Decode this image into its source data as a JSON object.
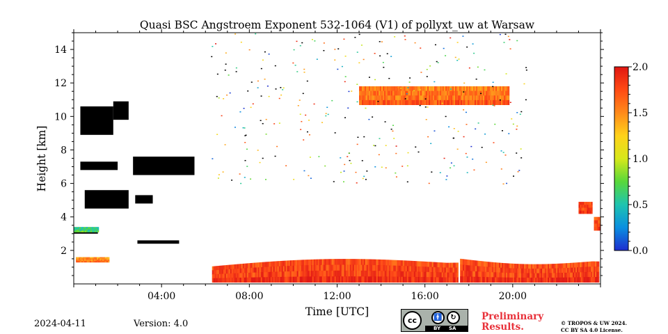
{
  "chart_data": {
    "type": "heatmap",
    "title": "Quasi BSC Angstroem Exponent 532-1064 (V1) of pollyxt_uw at Warsaw",
    "xlabel": "Time [UTC]",
    "ylabel": "Height [km]",
    "x_unit": "hours UTC",
    "xlim": [
      0,
      24
    ],
    "ylim": [
      0,
      15
    ],
    "x_ticks": [
      {
        "value": 4,
        "label": "04:00"
      },
      {
        "value": 8,
        "label": "08:00"
      },
      {
        "value": 12,
        "label": "12:00"
      },
      {
        "value": 16,
        "label": "16:00"
      },
      {
        "value": 20,
        "label": "20:00"
      }
    ],
    "y_ticks": [
      {
        "value": 2,
        "label": "2"
      },
      {
        "value": 4,
        "label": "4"
      },
      {
        "value": 6,
        "label": "6"
      },
      {
        "value": 8,
        "label": "8"
      },
      {
        "value": 10,
        "label": "10"
      },
      {
        "value": 12,
        "label": "12"
      },
      {
        "value": 14,
        "label": "14"
      }
    ],
    "colorbar": {
      "range": [
        0.0,
        2.0
      ],
      "ticks": [
        {
          "value": 0.0,
          "label": "0.0"
        },
        {
          "value": 0.5,
          "label": "0.5"
        },
        {
          "value": 1.0,
          "label": "1.0"
        },
        {
          "value": 1.5,
          "label": "1.5"
        },
        {
          "value": 2.0,
          "label": "2.0"
        }
      ],
      "colormap": [
        "#1e2dcf",
        "#0a8fe0",
        "#1ec4b0",
        "#58d83a",
        "#d7e81a",
        "#ffd21a",
        "#ff8a1a",
        "#ff4a14",
        "#e01612"
      ]
    },
    "regions": [
      {
        "t0": 6.3,
        "t1": 17.5,
        "h0": 0.1,
        "h1": 1.05,
        "h1_end": 1.6,
        "value": 1.8
      },
      {
        "t0": 17.6,
        "t1": 23.9,
        "h0": 0.1,
        "h1": 1.5,
        "h1_end": 1.1,
        "value": 1.8
      },
      {
        "t0": 13.0,
        "t1": 19.8,
        "h0": 10.7,
        "h1": 11.8,
        "value": 1.6
      },
      {
        "t0": 23.0,
        "t1": 23.6,
        "h0": 4.2,
        "h1": 4.9,
        "value": 1.8
      },
      {
        "t0": 23.7,
        "t1": 24.0,
        "h0": 3.2,
        "h1": 4.0,
        "value": 1.7
      },
      {
        "t0": 0.1,
        "t1": 1.6,
        "h0": 1.3,
        "h1": 1.6,
        "value": 1.5
      },
      {
        "t0": 0.0,
        "t1": 1.1,
        "h0": 3.1,
        "h1": 3.4,
        "value": 0.6
      }
    ],
    "masked_regions": [
      {
        "t0": 0.3,
        "t1": 1.8,
        "h0": 8.9,
        "h1": 10.6
      },
      {
        "t0": 1.8,
        "t1": 2.5,
        "h0": 9.8,
        "h1": 10.9
      },
      {
        "t0": 0.3,
        "t1": 2.0,
        "h0": 6.8,
        "h1": 7.3
      },
      {
        "t0": 2.7,
        "t1": 5.5,
        "h0": 6.5,
        "h1": 7.6
      },
      {
        "t0": 0.5,
        "t1": 2.5,
        "h0": 4.5,
        "h1": 5.6
      },
      {
        "t0": 2.8,
        "t1": 3.6,
        "h0": 4.8,
        "h1": 5.3
      },
      {
        "t0": 2.9,
        "t1": 4.8,
        "h0": 2.4,
        "h1": 2.6
      },
      {
        "t0": 0.0,
        "t1": 1.1,
        "h0": 3.0,
        "h1": 3.2
      }
    ]
  },
  "footer": {
    "date": "2024-04-11",
    "version": "Version: 4.0",
    "license_badge": {
      "cc": "cc",
      "by": "BY",
      "sa": "SA"
    },
    "preliminary_line1": "Preliminary",
    "preliminary_line2": "Results.",
    "copyright_line1": "© TROPOS & UW 2024.",
    "copyright_line2": "CC BY SA 4.0 License."
  }
}
